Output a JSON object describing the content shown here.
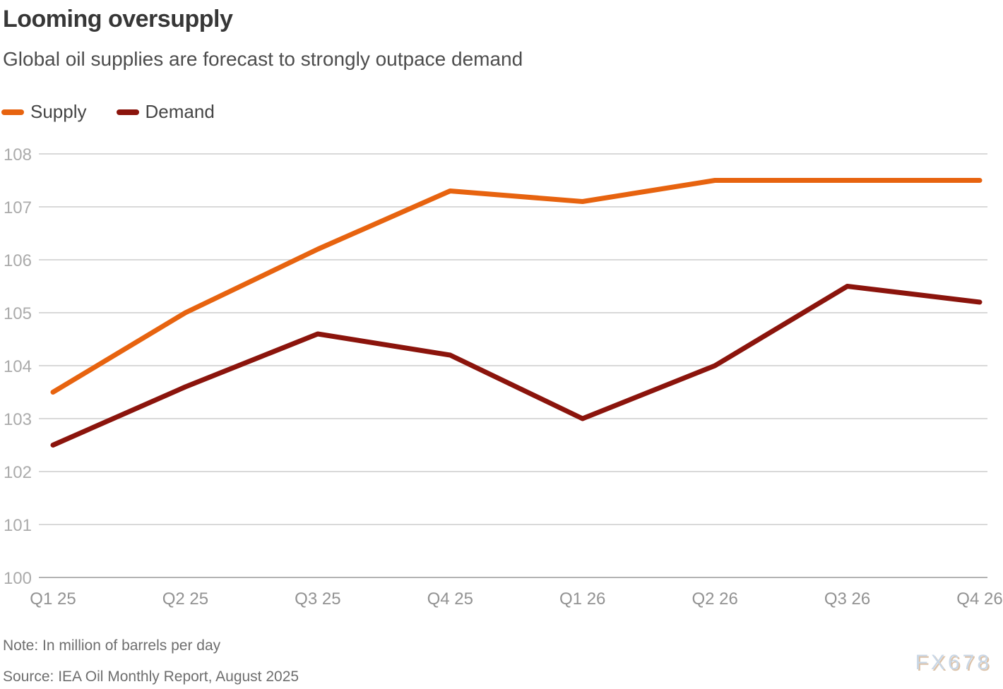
{
  "title": "Looming oversupply",
  "subtitle": "Global oil supplies are forecast to strongly outpace demand",
  "note": "Note: In million of barrels per day",
  "source": "Source: IEA Oil Monthly Report, August 2025",
  "watermark": "FX678",
  "colors": {
    "supply": "#e7630f",
    "demand": "#8b140c",
    "grid": "#d9d9d9",
    "axis_line": "#b3b3b3",
    "y_tick_label": "#ababab",
    "x_tick_label": "#929292",
    "title_text": "#373737",
    "subtitle_text": "#4d4d4d",
    "footnote_text": "#6e6e6e",
    "watermark_fill": "#c9d7e6",
    "watermark_shadow": "#dcc3aa"
  },
  "chart_data": {
    "type": "line",
    "categories": [
      "Q1 25",
      "Q2 25",
      "Q3 25",
      "Q4 25",
      "Q1 26",
      "Q2 26",
      "Q3 26",
      "Q4 26"
    ],
    "series": [
      {
        "name": "Supply",
        "color": "#e7630f",
        "values": [
          103.5,
          105.0,
          106.2,
          107.3,
          107.1,
          107.5,
          107.5,
          107.5
        ]
      },
      {
        "name": "Demand",
        "color": "#8b140c",
        "values": [
          102.5,
          103.6,
          104.6,
          104.2,
          103.0,
          104.0,
          105.5,
          105.2
        ]
      }
    ],
    "title": "Looming oversupply",
    "subtitle": "Global oil supplies are forecast to strongly outpace demand",
    "xlabel": "",
    "ylabel": "",
    "ylim": [
      100,
      108
    ],
    "ytick_step": 1,
    "yticks": [
      100,
      101,
      102,
      103,
      104,
      105,
      106,
      107,
      108
    ],
    "grid": true,
    "legend_position": "top-left",
    "units": "million barrels per day"
  }
}
